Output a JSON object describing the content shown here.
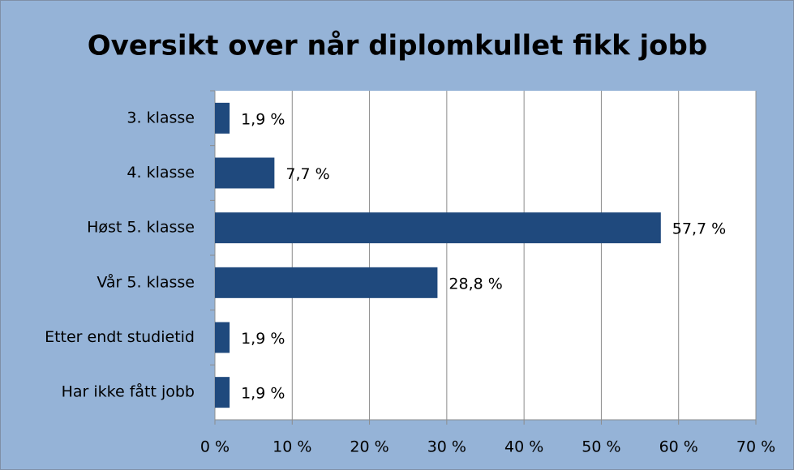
{
  "chart_data": {
    "type": "bar",
    "orientation": "horizontal",
    "title": "Oversikt over når diplomkullet fikk jobb",
    "categories": [
      "3. klasse",
      "4. klasse",
      "Høst 5. klasse",
      "Vår 5. klasse",
      "Etter endt studietid",
      "Har ikke fått jobb"
    ],
    "values": [
      1.9,
      7.7,
      57.7,
      28.8,
      1.9,
      1.9
    ],
    "value_labels": [
      "1,9 %",
      "7,7 %",
      "57,7 %",
      "28,8 %",
      "1,9 %",
      "1,9 %"
    ],
    "color": "#1f497d",
    "xlim": [
      0,
      70
    ],
    "xticks": [
      {
        "value": 0,
        "label": "0 %"
      },
      {
        "value": 10,
        "label": "10 %"
      },
      {
        "value": 20,
        "label": "20 %"
      },
      {
        "value": 30,
        "label": "30 %"
      },
      {
        "value": 40,
        "label": "40 %"
      },
      {
        "value": 50,
        "label": "50 %"
      },
      {
        "value": 60,
        "label": "60 %"
      },
      {
        "value": 70,
        "label": "70 %"
      }
    ],
    "grid": true
  }
}
